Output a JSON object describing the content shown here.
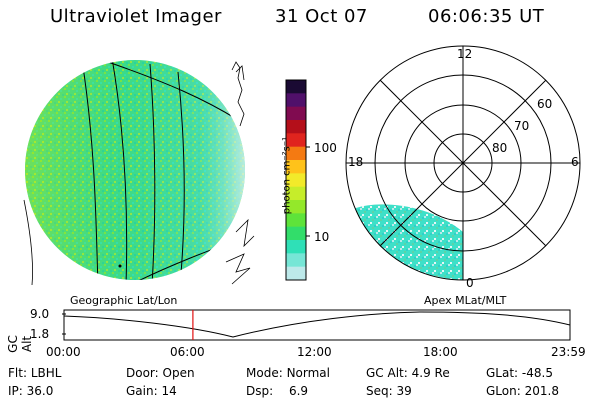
{
  "header": {
    "instrument": "Ultraviolet Imager",
    "date": "31 Oct 07",
    "time": "06:06:35 UT"
  },
  "colorbar": {
    "unit_label": "photon cm⁻²s⁻¹",
    "ticks": [
      "100",
      "10"
    ],
    "colors": [
      "#1a0a33",
      "#50106a",
      "#800b50",
      "#b40f1a",
      "#e0241e",
      "#f47a12",
      "#ffc21a",
      "#f2ea2a",
      "#c6ed2a",
      "#94e82a",
      "#5ee33a",
      "#32dd6a",
      "#2fe0b7",
      "#76e6d6",
      "#bde9ea"
    ]
  },
  "polar_grid": {
    "mlt_labels": {
      "top": "12",
      "left": "18",
      "right": "6",
      "bottom": "0"
    },
    "lat_labels": [
      "60",
      "70",
      "80"
    ]
  },
  "panel_labels": {
    "left": "Geographic Lat/Lon",
    "right": "Apex MLat/MLT"
  },
  "timeline": {
    "ylabel": "GC Alt",
    "yticks": [
      "9.0",
      "1.8"
    ],
    "xticks": [
      "00:00",
      "06:00",
      "12:00",
      "18:00",
      "23:59"
    ],
    "marker_time": "06:06:35",
    "line_color": "#000000",
    "marker_color": "#e01010"
  },
  "footer": {
    "row1": [
      {
        "label": "Flt:",
        "value": "LBHL"
      },
      {
        "label": "Door:",
        "value": "Open"
      },
      {
        "label": "Mode:",
        "value": "Normal"
      },
      {
        "label": "GC Alt:",
        "value": "4.9 Re"
      },
      {
        "label": "GLat:",
        "value": "-48.5"
      }
    ],
    "row2": [
      {
        "label": "IP:",
        "value": "36.0"
      },
      {
        "label": "Gain:",
        "value": "14"
      },
      {
        "label": "Dsp:",
        "value": "6.9"
      },
      {
        "label": "Seq:",
        "value": "39"
      },
      {
        "label": "GLon:",
        "value": "201.8"
      }
    ]
  }
}
